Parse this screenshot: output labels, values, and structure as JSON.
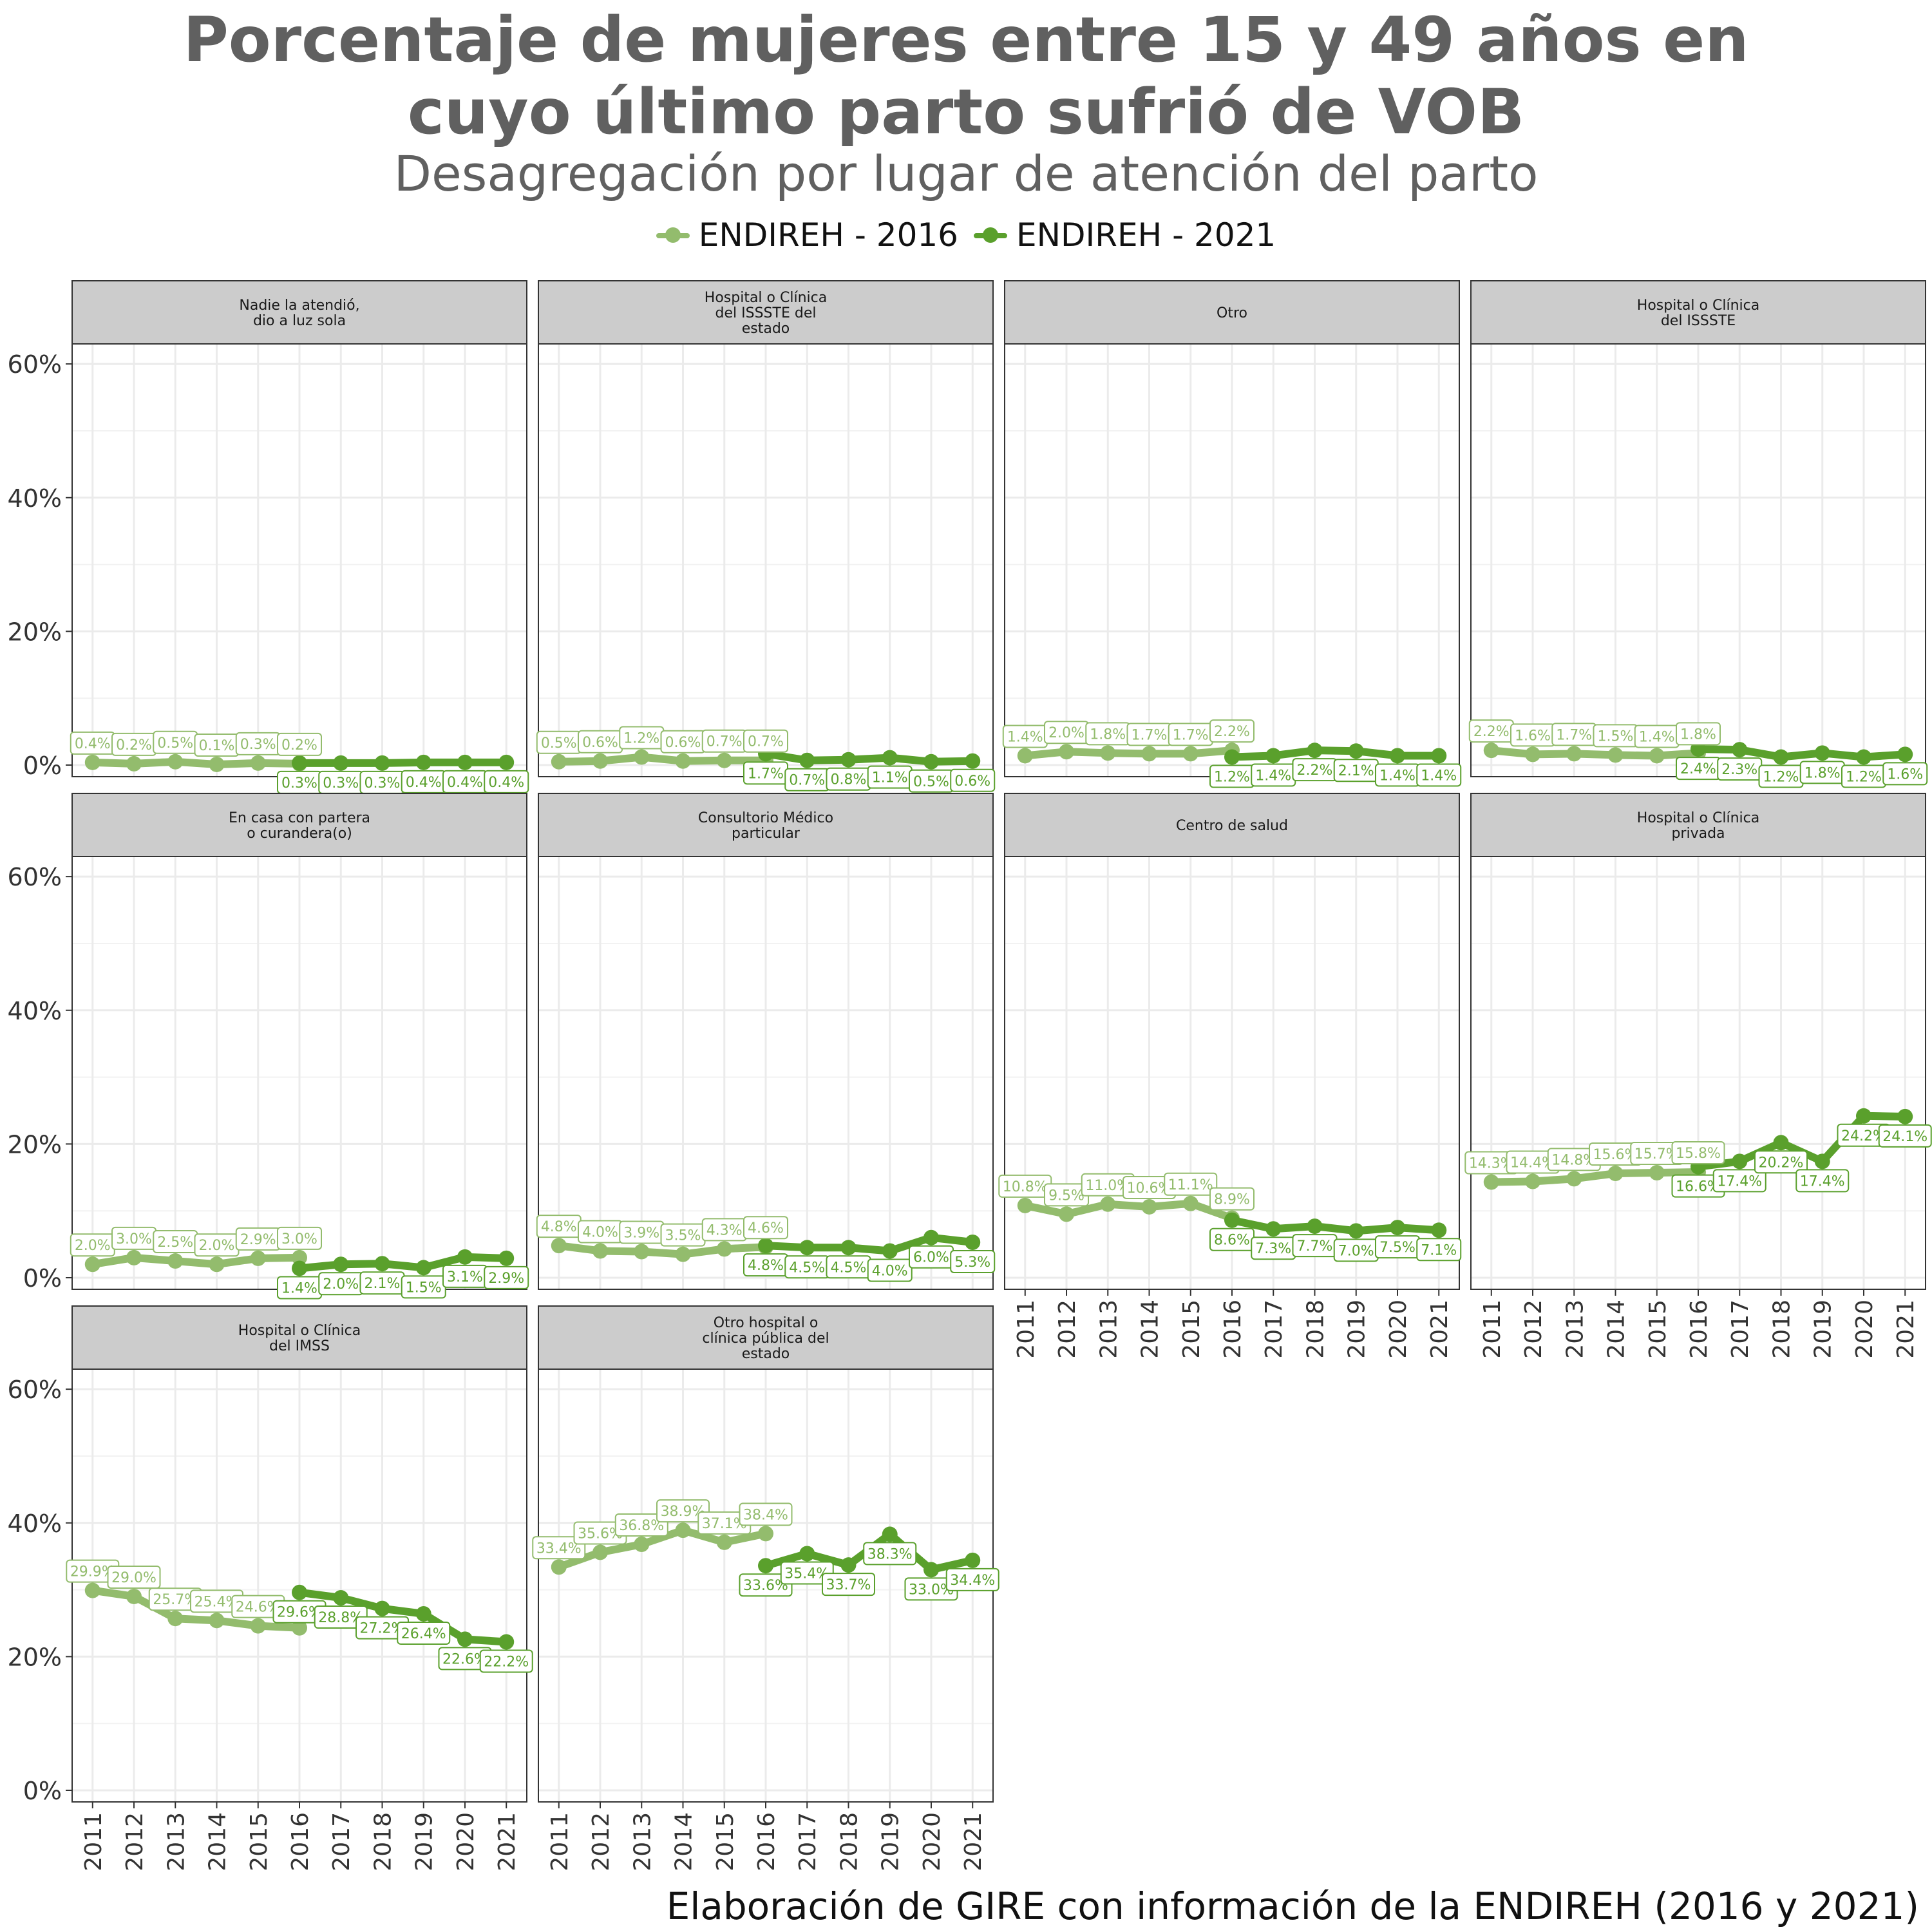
{
  "colors": {
    "s2016": "#93bc6d",
    "s2021": "#5aa02c",
    "strip_bg": "#cccccc",
    "grid": "#ebebeb",
    "text": "#333333"
  },
  "chart_data": {
    "type": "line",
    "title_lines": [
      "Porcentaje de mujeres entre 15 y 49 años en",
      "cuyo último parto sufrió de VOB"
    ],
    "subtitle": "Desagregación por lugar de atención del parto",
    "caption": "Elaboración de GIRE con información de la ENDIREH (2016 y 2021)",
    "legend": [
      {
        "name": "ENDIREH - 2016"
      },
      {
        "name": "ENDIREH - 2021"
      }
    ],
    "x": [
      "2011",
      "2012",
      "2013",
      "2014",
      "2015",
      "2016",
      "2017",
      "2018",
      "2019",
      "2020",
      "2021"
    ],
    "y_ticks": [
      "0%",
      "20%",
      "40%",
      "60%"
    ],
    "ylim": [
      0,
      0.6
    ],
    "legend_position": "top",
    "grid": true,
    "panels": [
      {
        "title": [
          "Nadie la atendió,",
          "dio a luz sola"
        ],
        "s2016": [
          0.004,
          0.002,
          0.005,
          0.001,
          0.003,
          0.002
        ],
        "s2016_labels": [
          "0.4%",
          "0.2%",
          "0.5%",
          "0.1%",
          "0.3%",
          "0.2%"
        ],
        "s2021": [
          0.003,
          0.003,
          0.003,
          0.004,
          0.004,
          0.004
        ],
        "s2021_labels": [
          "0.3%",
          "0.3%",
          "0.3%",
          "0.4%",
          "0.4%",
          "0.4%"
        ]
      },
      {
        "title": [
          "Hospital o Clínica",
          "del ISSSTE del",
          "estado"
        ],
        "s2016": [
          0.005,
          0.006,
          0.012,
          0.006,
          0.007,
          0.007
        ],
        "s2016_labels": [
          "0.5%",
          "0.6%",
          "1.2%",
          "0.6%",
          "0.7%",
          "0.7%"
        ],
        "s2021": [
          0.017,
          0.007,
          0.008,
          0.011,
          0.005,
          0.006
        ],
        "s2021_labels": [
          "1.7%",
          "0.7%",
          "0.8%",
          "1.1%",
          "0.5%",
          "0.6%"
        ]
      },
      {
        "title": [
          "Otro"
        ],
        "s2016": [
          0.014,
          0.02,
          0.018,
          0.017,
          0.017,
          0.022
        ],
        "s2016_labels": [
          "1.4%",
          "2.0%",
          "1.8%",
          "1.7%",
          "1.7%",
          "2.2%"
        ],
        "s2021": [
          0.012,
          0.014,
          0.022,
          0.021,
          0.014,
          0.014
        ],
        "s2021_labels": [
          "1.2%",
          "1.4%",
          "2.2%",
          "2.1%",
          "1.4%",
          "1.4%"
        ]
      },
      {
        "title": [
          "Hospital o Clínica",
          "del ISSSTE"
        ],
        "s2016": [
          0.022,
          0.016,
          0.017,
          0.015,
          0.014,
          0.018
        ],
        "s2016_labels": [
          "2.2%",
          "1.6%",
          "1.7%",
          "1.5%",
          "1.4%",
          "1.8%"
        ],
        "s2021": [
          0.024,
          0.023,
          0.012,
          0.018,
          0.012,
          0.016
        ],
        "s2021_labels": [
          "2.4%",
          "2.3%",
          "1.2%",
          "1.8%",
          "1.2%",
          "1.6%"
        ]
      },
      {
        "title": [
          "En casa con partera",
          "o curandera(o)"
        ],
        "s2016": [
          0.02,
          0.03,
          0.025,
          0.02,
          0.029,
          0.03
        ],
        "s2016_labels": [
          "2.0%",
          "3.0%",
          "2.5%",
          "2.0%",
          "2.9%",
          "3.0%"
        ],
        "s2021": [
          0.014,
          0.02,
          0.021,
          0.015,
          0.031,
          0.029
        ],
        "s2021_labels": [
          "1.4%",
          "2.0%",
          "2.1%",
          "1.5%",
          "3.1%",
          "2.9%"
        ]
      },
      {
        "title": [
          "Consultorio Médico",
          "particular"
        ],
        "s2016": [
          0.048,
          0.04,
          0.039,
          0.035,
          0.043,
          0.046
        ],
        "s2016_labels": [
          "4.8%",
          "4.0%",
          "3.9%",
          "3.5%",
          "4.3%",
          "4.6%"
        ],
        "s2021": [
          0.048,
          0.045,
          0.045,
          0.04,
          0.06,
          0.053
        ],
        "s2021_labels": [
          "4.8%",
          "4.5%",
          "4.5%",
          "4.0%",
          "6.0%",
          "5.3%"
        ]
      },
      {
        "title": [
          "Centro de salud"
        ],
        "s2016": [
          0.108,
          0.095,
          0.11,
          0.106,
          0.111,
          0.089
        ],
        "s2016_labels": [
          "10.8%",
          "9.5%",
          "11.0%",
          "10.6%",
          "11.1%",
          "8.9%"
        ],
        "s2021": [
          0.086,
          0.073,
          0.077,
          0.07,
          0.075,
          0.071
        ],
        "s2021_labels": [
          "8.6%",
          "7.3%",
          "7.7%",
          "7.0%",
          "7.5%",
          "7.1%"
        ]
      },
      {
        "title": [
          "Hospital o Clínica",
          "privada"
        ],
        "s2016": [
          0.143,
          0.144,
          0.148,
          0.156,
          0.157,
          0.158
        ],
        "s2016_labels": [
          "14.3%",
          "14.4%",
          "14.8%",
          "15.6%",
          "15.7%",
          "15.8%"
        ],
        "s2021": [
          0.166,
          0.174,
          0.202,
          0.174,
          0.242,
          0.241
        ],
        "s2021_labels": [
          "16.6%",
          "17.4%",
          "20.2%",
          "17.4%",
          "24.2%",
          "24.1%"
        ]
      },
      {
        "title": [
          "Hospital o Clínica",
          "del IMSS"
        ],
        "s2016": [
          0.299,
          0.29,
          0.257,
          0.254,
          0.246,
          0.243
        ],
        "s2016_labels": [
          "29.9%",
          "29.0%",
          "25.7%",
          "25.4%",
          "24.6%",
          ""
        ],
        "s2021": [
          0.296,
          0.288,
          0.272,
          0.264,
          0.226,
          0.222
        ],
        "s2021_labels": [
          "29.6%",
          "28.8%",
          "27.2%",
          "26.4%",
          "22.6%",
          "22.2%"
        ]
      },
      {
        "title": [
          "Otro hospital o",
          "clínica pública del",
          "estado"
        ],
        "s2016": [
          0.334,
          0.356,
          0.368,
          0.389,
          0.371,
          0.384
        ],
        "s2016_labels": [
          "33.4%",
          "35.6%",
          "36.8%",
          "38.9%",
          "37.1%",
          "38.4%"
        ],
        "s2021": [
          0.336,
          0.354,
          0.337,
          0.383,
          0.33,
          0.344
        ],
        "s2021_labels": [
          "33.6%",
          "35.4%",
          "33.7%",
          "38.3%",
          "33.0%",
          "34.4%"
        ]
      }
    ]
  }
}
